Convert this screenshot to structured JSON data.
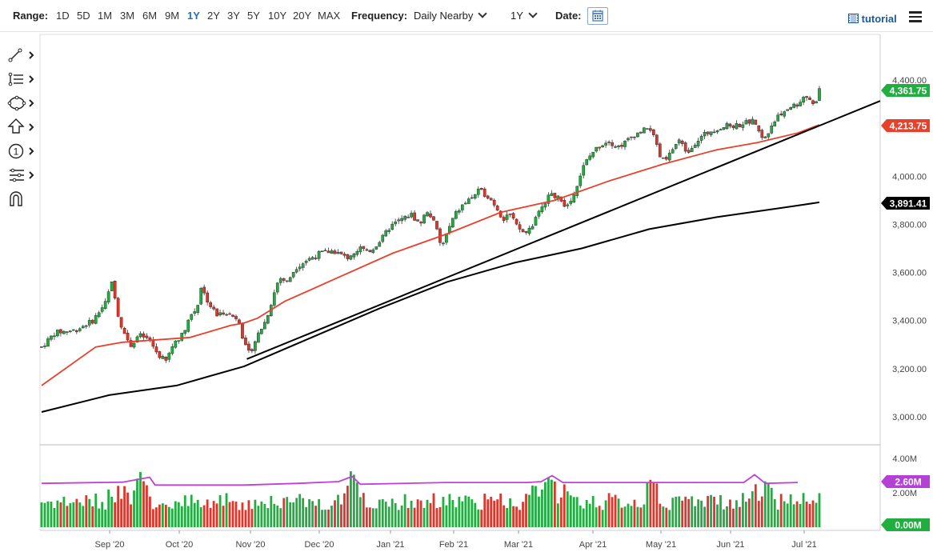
{
  "toolbar": {
    "range_label": "Range:",
    "ranges": [
      "1D",
      "5D",
      "1M",
      "3M",
      "6M",
      "9M",
      "1Y",
      "2Y",
      "3Y",
      "5Y",
      "10Y",
      "20Y",
      "MAX"
    ],
    "active_range": "1Y",
    "frequency_label": "Frequency:",
    "frequency_value": "Daily Nearby",
    "period_value": "1Y",
    "date_label": "Date:",
    "tutorial_label": "tutorial"
  },
  "tools": [
    "line-draw-icon",
    "fib-levels-icon",
    "shape-icon",
    "arrow-up-icon",
    "number-marker-icon",
    "pattern-icon",
    "magnet-icon"
  ],
  "colors": {
    "up": "#1fae3f",
    "down": "#e0352b",
    "ma_short": "#e8412b",
    "ma_long": "#000000",
    "last_price": "#1fae3f",
    "ma_short_badge": "#e8412b",
    "ma_long_badge": "#000000",
    "volume_ma": "#c040d8",
    "volume_badge": "#b441d6"
  },
  "chart_data": [
    {
      "type": "candlestick",
      "title": "",
      "x_labels": [
        "Sep '20",
        "Oct '20",
        "Nov '20",
        "Dec '20",
        "Jan '21",
        "Feb '21",
        "Mar '21",
        "Apr '21",
        "May '21",
        "Jun '21",
        "Jul '21"
      ],
      "y_ticks": [
        "4,400.00",
        "4,200.00",
        "4,000.00",
        "3,800.00",
        "3,600.00",
        "3,400.00",
        "3,200.00",
        "3,000.00"
      ],
      "ylim": [
        2950,
        4450
      ],
      "price_path": [
        [
          0,
          3290
        ],
        [
          10,
          3350
        ],
        [
          25,
          3360
        ],
        [
          38,
          3400
        ],
        [
          48,
          3480
        ],
        [
          52,
          3570
        ],
        [
          55,
          3460
        ],
        [
          60,
          3360
        ],
        [
          66,
          3300
        ],
        [
          72,
          3340
        ],
        [
          80,
          3320
        ],
        [
          86,
          3260
        ],
        [
          92,
          3230
        ],
        [
          98,
          3310
        ],
        [
          104,
          3340
        ],
        [
          110,
          3420
        ],
        [
          115,
          3450
        ],
        [
          118,
          3540
        ],
        [
          124,
          3470
        ],
        [
          130,
          3420
        ],
        [
          136,
          3440
        ],
        [
          140,
          3420
        ],
        [
          146,
          3410
        ],
        [
          150,
          3300
        ],
        [
          154,
          3260
        ],
        [
          160,
          3340
        ],
        [
          166,
          3400
        ],
        [
          172,
          3510
        ],
        [
          176,
          3580
        ],
        [
          182,
          3560
        ],
        [
          188,
          3620
        ],
        [
          196,
          3650
        ],
        [
          206,
          3680
        ],
        [
          216,
          3690
        ],
        [
          226,
          3660
        ],
        [
          236,
          3700
        ],
        [
          244,
          3690
        ],
        [
          252,
          3740
        ],
        [
          258,
          3790
        ],
        [
          266,
          3820
        ],
        [
          274,
          3840
        ],
        [
          280,
          3800
        ],
        [
          286,
          3860
        ],
        [
          292,
          3790
        ],
        [
          296,
          3700
        ],
        [
          300,
          3760
        ],
        [
          306,
          3840
        ],
        [
          312,
          3880
        ],
        [
          318,
          3910
        ],
        [
          324,
          3940
        ],
        [
          330,
          3920
        ],
        [
          336,
          3880
        ],
        [
          342,
          3820
        ],
        [
          346,
          3850
        ],
        [
          352,
          3790
        ],
        [
          358,
          3760
        ],
        [
          364,
          3800
        ],
        [
          372,
          3890
        ],
        [
          378,
          3930
        ],
        [
          384,
          3900
        ],
        [
          390,
          3870
        ],
        [
          396,
          3960
        ],
        [
          402,
          4050
        ],
        [
          408,
          4100
        ],
        [
          414,
          4130
        ],
        [
          420,
          4150
        ],
        [
          426,
          4120
        ],
        [
          432,
          4140
        ],
        [
          438,
          4170
        ],
        [
          446,
          4190
        ],
        [
          450,
          4210
        ],
        [
          454,
          4150
        ],
        [
          458,
          4080
        ],
        [
          462,
          4060
        ],
        [
          468,
          4120
        ],
        [
          472,
          4150
        ],
        [
          478,
          4100
        ],
        [
          484,
          4140
        ],
        [
          490,
          4170
        ],
        [
          496,
          4190
        ],
        [
          502,
          4200
        ],
        [
          508,
          4210
        ],
        [
          514,
          4210
        ],
        [
          520,
          4220
        ],
        [
          526,
          4230
        ],
        [
          530,
          4200
        ],
        [
          534,
          4150
        ],
        [
          538,
          4180
        ],
        [
          542,
          4230
        ],
        [
          548,
          4260
        ],
        [
          554,
          4290
        ],
        [
          560,
          4300
        ],
        [
          564,
          4330
        ],
        [
          568,
          4330
        ],
        [
          572,
          4290
        ],
        [
          576,
          4360
        ]
      ],
      "x_span_days": 576,
      "ma50": [
        [
          0,
          3130
        ],
        [
          40,
          3290
        ],
        [
          60,
          3310
        ],
        [
          110,
          3330
        ],
        [
          140,
          3380
        ],
        [
          150,
          3390
        ],
        [
          160,
          3410
        ],
        [
          180,
          3480
        ],
        [
          220,
          3580
        ],
        [
          260,
          3680
        ],
        [
          300,
          3760
        ],
        [
          340,
          3850
        ],
        [
          380,
          3900
        ],
        [
          420,
          3980
        ],
        [
          460,
          4050
        ],
        [
          500,
          4110
        ],
        [
          530,
          4140
        ],
        [
          560,
          4180
        ],
        [
          576,
          4213.75
        ]
      ],
      "ma200": [
        [
          0,
          3020
        ],
        [
          50,
          3090
        ],
        [
          100,
          3130
        ],
        [
          150,
          3210
        ],
        [
          200,
          3330
        ],
        [
          250,
          3450
        ],
        [
          300,
          3560
        ],
        [
          350,
          3640
        ],
        [
          400,
          3700
        ],
        [
          450,
          3780
        ],
        [
          500,
          3830
        ],
        [
          550,
          3870
        ],
        [
          576,
          3891.41
        ]
      ],
      "trendline": [
        [
          152,
          3240
        ],
        [
          576,
          4210
        ]
      ],
      "badges": {
        "last_price": "4,361.75",
        "ma_short": "4,213.75",
        "ma_long": "3,891.41"
      }
    },
    {
      "type": "bar",
      "title": "",
      "y_ticks": [
        "4.00M",
        "2.00M"
      ],
      "ylim": [
        0,
        4.2
      ],
      "volume_ma_value": "2.60M",
      "zero_label": "0.00M",
      "volume_ma": [
        [
          0,
          2.55
        ],
        [
          60,
          2.62
        ],
        [
          80,
          2.9
        ],
        [
          84,
          2.45
        ],
        [
          150,
          2.45
        ],
        [
          190,
          2.55
        ],
        [
          220,
          2.65
        ],
        [
          230,
          2.95
        ],
        [
          236,
          2.5
        ],
        [
          300,
          2.6
        ],
        [
          360,
          2.6
        ],
        [
          370,
          2.65
        ],
        [
          378,
          3.0
        ],
        [
          386,
          2.6
        ],
        [
          450,
          2.6
        ],
        [
          520,
          2.6
        ],
        [
          528,
          3.05
        ],
        [
          536,
          2.55
        ],
        [
          560,
          2.6
        ]
      ]
    }
  ]
}
